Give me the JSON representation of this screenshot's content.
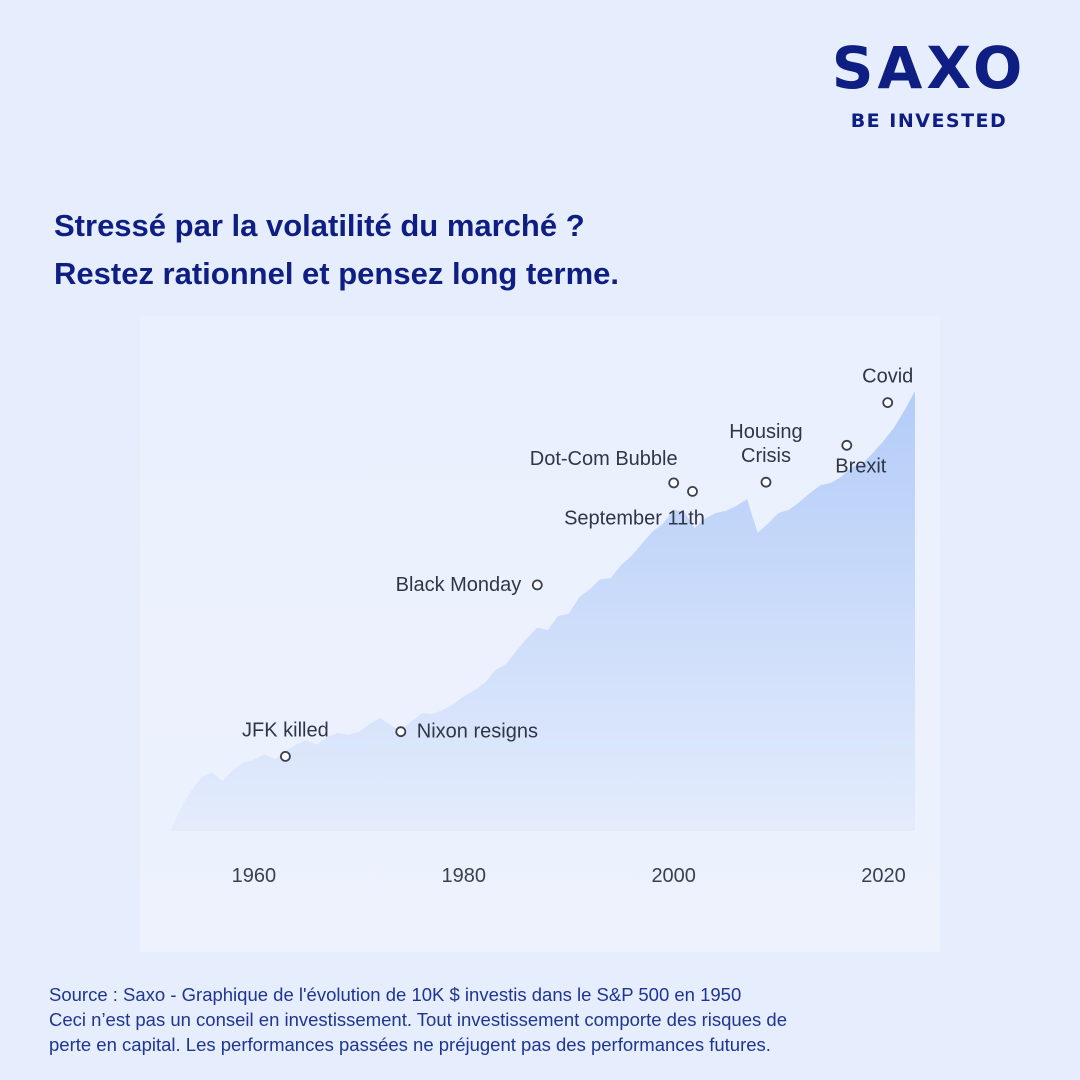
{
  "brand": {
    "name": "SAXO",
    "tagline": "BE INVESTED",
    "color": "#0e1e82"
  },
  "headline": {
    "line1": "Stressé par la volatilité du marché ?",
    "line2": "Restez rationnel et pensez long terme."
  },
  "chart_data": {
    "type": "area",
    "x_ticks": [
      1960,
      1980,
      2000,
      2020
    ],
    "xlim": [
      1952,
      2023
    ],
    "y_scale": "log",
    "ylim": [
      10000,
      4000000
    ],
    "grid": false,
    "fill_top_color": "#b3ccf8",
    "fill_bottom_color": "#e4ecfc",
    "x": [
      1952,
      1953,
      1954,
      1955,
      1956,
      1957,
      1958,
      1959,
      1960,
      1961,
      1962,
      1963,
      1964,
      1965,
      1966,
      1967,
      1968,
      1969,
      1970,
      1971,
      1972,
      1973,
      1974,
      1975,
      1976,
      1977,
      1978,
      1979,
      1980,
      1981,
      1982,
      1983,
      1984,
      1985,
      1986,
      1987,
      1988,
      1989,
      1990,
      1991,
      1992,
      1993,
      1994,
      1995,
      1996,
      1997,
      1998,
      1999,
      2000,
      2001,
      2002,
      2003,
      2004,
      2005,
      2006,
      2007,
      2008,
      2009,
      2010,
      2011,
      2012,
      2013,
      2014,
      2015,
      2016,
      2017,
      2018,
      2019,
      2020,
      2021,
      2022,
      2023
    ],
    "values": [
      10000,
      13500,
      17000,
      20500,
      21800,
      19500,
      22500,
      25000,
      25800,
      27800,
      26000,
      29000,
      31500,
      33500,
      31500,
      35000,
      37000,
      36000,
      37500,
      41500,
      45000,
      41000,
      38000,
      43000,
      48000,
      47500,
      50000,
      54000,
      60000,
      65000,
      72000,
      85000,
      92000,
      110000,
      130000,
      150000,
      145000,
      175000,
      180000,
      225000,
      250000,
      285000,
      290000,
      345000,
      390000,
      460000,
      540000,
      600000,
      720000,
      700000,
      565000,
      640000,
      690000,
      710000,
      760000,
      830000,
      530000,
      600000,
      690000,
      720000,
      800000,
      900000,
      1000000,
      1030000,
      1120000,
      1280000,
      1330000,
      1540000,
      1800000,
      2150000,
      2700000,
      3500000
    ],
    "annotations": [
      {
        "label": "JFK killed",
        "x": 1963,
        "y": 27000
      },
      {
        "label": "Nixon resigns",
        "x": 1974,
        "y": 37500
      },
      {
        "label": "Black Monday",
        "x": 1987,
        "y": 265000
      },
      {
        "label": "Dot-Com Bubble",
        "x": 2000,
        "y": 1030000
      },
      {
        "label": "September 11th",
        "x": 2001.8,
        "y": 920000
      },
      {
        "label": "Housing Crisis",
        "x": 2008.8,
        "y": 1040000
      },
      {
        "label": "Brexit",
        "x": 2016.5,
        "y": 1700000
      },
      {
        "label": "Covid",
        "x": 2020.4,
        "y": 3000000
      }
    ]
  },
  "footer": {
    "source": "Source : Saxo  - Graphique de l'évolution de 10K $ investis dans le S&P 500 en 1950",
    "disclaimer": "Ceci n’est pas un conseil en investissement. Tout investissement comporte des risques de",
    "disclaimer2": "perte en capital. Les performances passées ne préjugent pas des performances futures."
  }
}
